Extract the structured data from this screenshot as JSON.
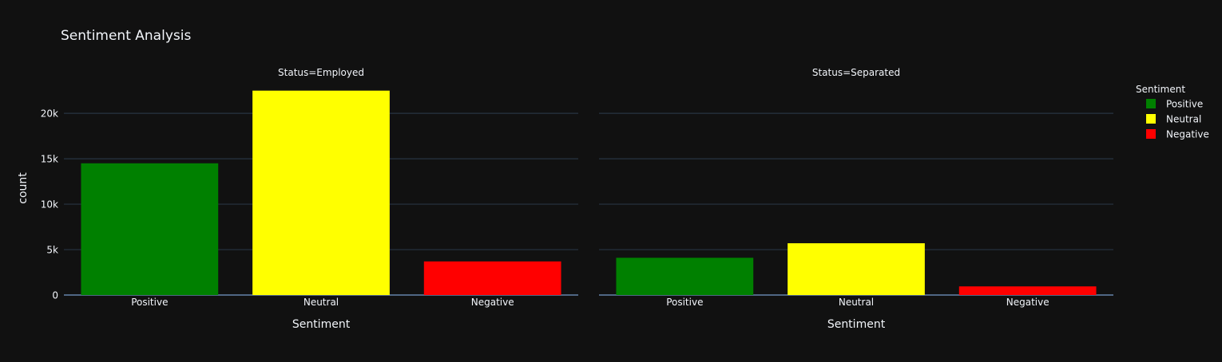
{
  "chart_data": {
    "type": "bar",
    "title": "Sentiment Analysis",
    "ylabel": "count",
    "xlabel": "Sentiment",
    "categories": [
      "Positive",
      "Neutral",
      "Negative"
    ],
    "ylim": [
      0,
      23700
    ],
    "yticks": [
      {
        "value": 0,
        "label": "0"
      },
      {
        "value": 5000,
        "label": "5k"
      },
      {
        "value": 10000,
        "label": "10k"
      },
      {
        "value": 15000,
        "label": "15k"
      },
      {
        "value": 20000,
        "label": "20k"
      }
    ],
    "facets": [
      {
        "title": "Status=Employed",
        "values": [
          14500,
          22500,
          3700
        ]
      },
      {
        "title": "Status=Separated",
        "values": [
          4100,
          5700,
          950
        ]
      }
    ],
    "legend": {
      "title": "Sentiment",
      "placement": "right",
      "items": [
        {
          "label": "Positive",
          "color": "#008000"
        },
        {
          "label": "Neutral",
          "color": "#ffff00"
        },
        {
          "label": "Negative",
          "color": "#ff0000"
        }
      ]
    },
    "colors": {
      "background": "#111111",
      "grid": "#283442",
      "text": "#f2f5fa",
      "axis_line": "#506784"
    }
  }
}
